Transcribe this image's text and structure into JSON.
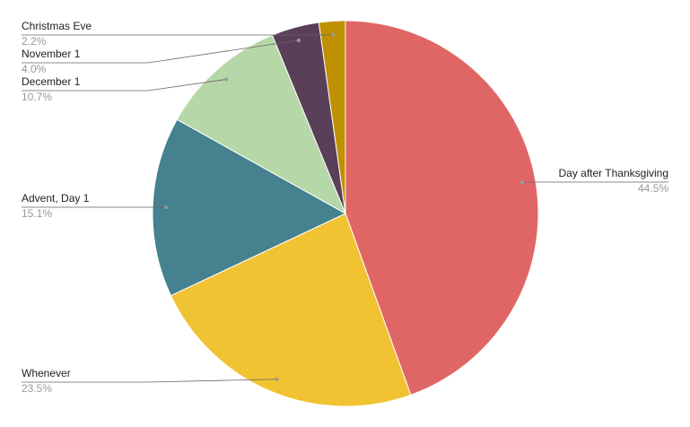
{
  "chart_data": {
    "type": "pie",
    "categories": [
      "Day after Thanksgiving",
      "Whenever",
      "Advent, Day 1",
      "December 1",
      "November 1",
      "Christmas Eve"
    ],
    "values": [
      44.5,
      23.5,
      15.1,
      10.7,
      4.0,
      2.2
    ],
    "value_labels": [
      "44.5%",
      "23.5%",
      "15.1%",
      "10.7%",
      "4.0%",
      "2.2%"
    ],
    "colors": [
      "#e06666",
      "#f1c232",
      "#45818e",
      "#b6d7a8",
      "#5a3f59",
      "#bf9000"
    ]
  }
}
